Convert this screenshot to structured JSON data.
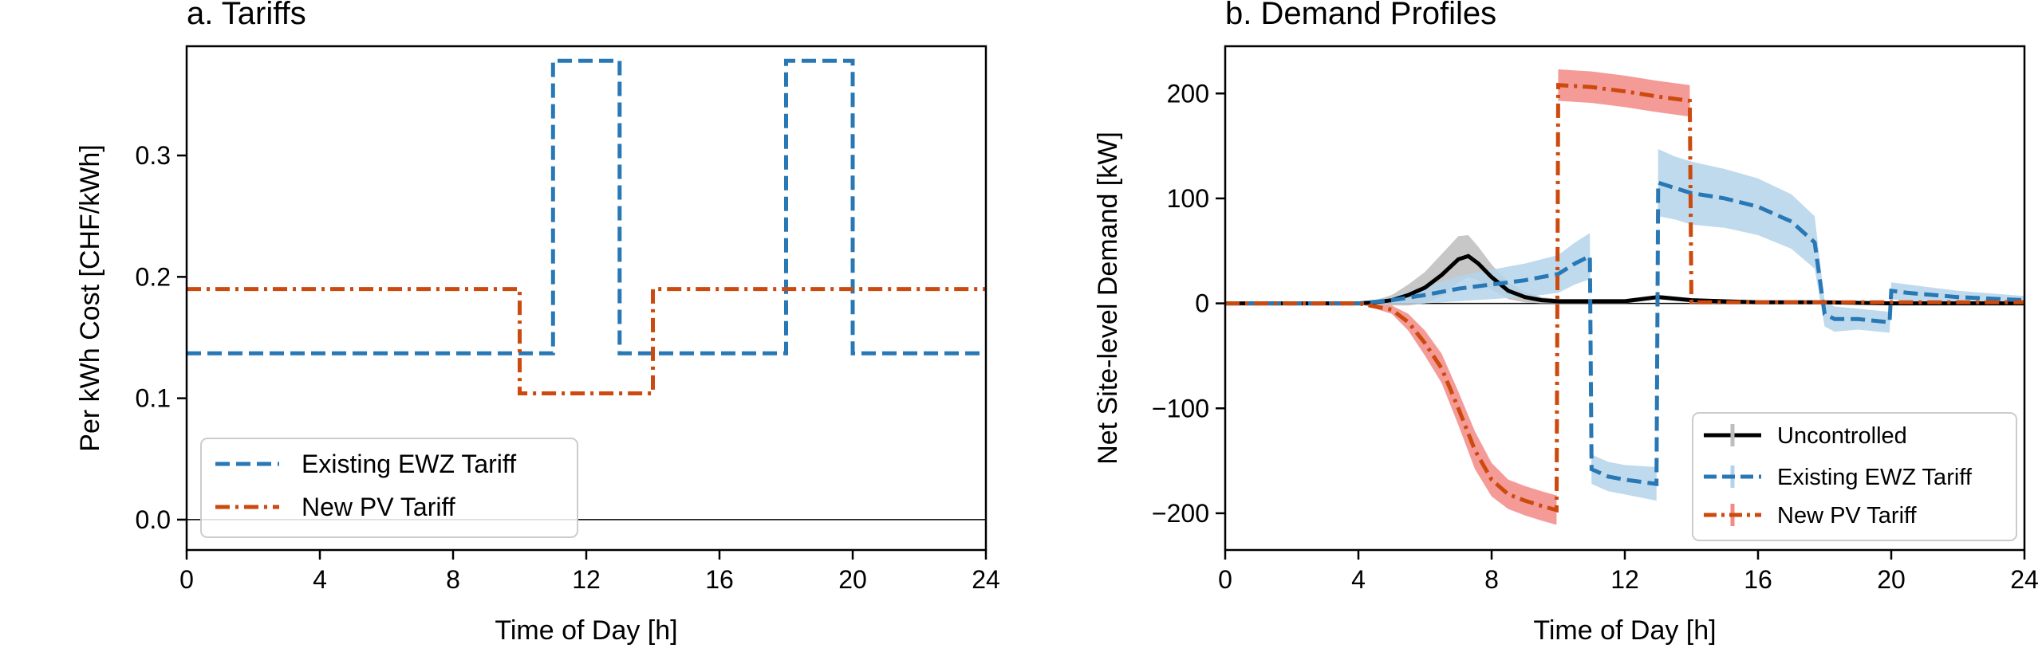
{
  "chart_data": [
    {
      "type": "line",
      "title": "a. Tariffs",
      "xlabel": "Time of Day [h]",
      "ylabel": "Per kWh Cost [CHF/kWh]",
      "xlim": [
        0,
        24
      ],
      "ylim": [
        -0.025,
        0.39
      ],
      "xticks": [
        "0",
        "4",
        "8",
        "12",
        "16",
        "20",
        "24"
      ],
      "yticks": [
        "0.0",
        "0.1",
        "0.2",
        "0.3"
      ],
      "grid": false,
      "legend_position": "lower-left",
      "series": [
        {
          "name": "Existing EWZ Tariff",
          "color": "#2878b5",
          "style": "dashed",
          "x": [
            0,
            11,
            11,
            13,
            13,
            18,
            18,
            20,
            20,
            24
          ],
          "y": [
            0.137,
            0.137,
            0.378,
            0.378,
            0.137,
            0.137,
            0.378,
            0.378,
            0.137,
            0.137
          ]
        },
        {
          "name": "New PV Tariff",
          "color": "#cc4a0e",
          "style": "dashdot",
          "x": [
            0,
            10,
            10,
            14,
            14,
            24
          ],
          "y": [
            0.19,
            0.19,
            0.104,
            0.104,
            0.19,
            0.19
          ]
        }
      ]
    },
    {
      "type": "line",
      "title": "b. Demand Profiles",
      "xlabel": "Time of Day [h]",
      "ylabel": "Net Site-level Demand [kW]",
      "xlim": [
        0,
        24
      ],
      "ylim": [
        -235,
        245
      ],
      "xticks": [
        "0",
        "4",
        "8",
        "12",
        "16",
        "20",
        "24"
      ],
      "yticks": [
        "−200",
        "−100",
        "0",
        "100",
        "200"
      ],
      "grid": false,
      "legend_position": "lower-right",
      "series": [
        {
          "name": "Uncontrolled",
          "color": "#000000",
          "band_color": "#bdbdbd",
          "style": "solid",
          "x": [
            0,
            4,
            4.5,
            5,
            5.5,
            6,
            6.5,
            7,
            7.3,
            7.6,
            8,
            8.5,
            9,
            9.5,
            10,
            12,
            13,
            14,
            16,
            18,
            20,
            22,
            24
          ],
          "y": [
            0,
            0,
            1,
            3,
            8,
            15,
            27,
            42,
            45,
            38,
            25,
            12,
            6,
            3,
            2,
            2,
            6,
            3,
            1,
            1,
            0,
            0,
            0
          ],
          "band": [
            0,
            0,
            2,
            5,
            10,
            15,
            20,
            22,
            20,
            16,
            12,
            8,
            5,
            3,
            2,
            2,
            2,
            2,
            1,
            1,
            1,
            1,
            0
          ]
        },
        {
          "name": "Existing EWZ Tariff",
          "color": "#2878b5",
          "band_color": "#b4d3ea",
          "style": "dashed",
          "x": [
            0,
            4,
            5,
            6,
            7,
            8,
            9,
            10,
            10.5,
            10.95,
            11,
            11.5,
            12,
            12.95,
            13,
            13.5,
            14,
            15,
            16,
            17,
            17.7,
            18,
            18.3,
            19,
            19.95,
            20,
            20.5,
            22,
            24
          ],
          "y": [
            0,
            0,
            3,
            8,
            14,
            18,
            22,
            28,
            38,
            45,
            -158,
            -165,
            -168,
            -172,
            115,
            110,
            105,
            100,
            92,
            78,
            58,
            -10,
            -15,
            -15,
            -18,
            12,
            10,
            6,
            3
          ],
          "band": [
            0,
            0,
            3,
            8,
            12,
            14,
            16,
            18,
            20,
            22,
            14,
            14,
            14,
            16,
            32,
            30,
            30,
            28,
            27,
            26,
            25,
            12,
            12,
            10,
            10,
            8,
            8,
            6,
            4
          ]
        },
        {
          "name": "New PV Tariff",
          "color": "#cc4a0e",
          "band_color": "#f28a86",
          "style": "dashdot",
          "x": [
            0,
            4,
            5,
            5.5,
            6,
            6.5,
            7,
            7.5,
            8,
            8.5,
            9,
            9.5,
            9.95,
            10,
            11,
            12,
            13,
            13.95,
            14,
            16,
            20,
            24
          ],
          "y": [
            0,
            0,
            -6,
            -18,
            -38,
            -62,
            -100,
            -140,
            -168,
            -182,
            -188,
            -193,
            -197,
            208,
            206,
            202,
            197,
            193,
            1,
            1,
            1,
            1
          ],
          "band": [
            0,
            0,
            4,
            8,
            12,
            14,
            16,
            18,
            16,
            14,
            14,
            14,
            14,
            15,
            15,
            15,
            15,
            15,
            1,
            1,
            1,
            1
          ]
        }
      ]
    }
  ]
}
